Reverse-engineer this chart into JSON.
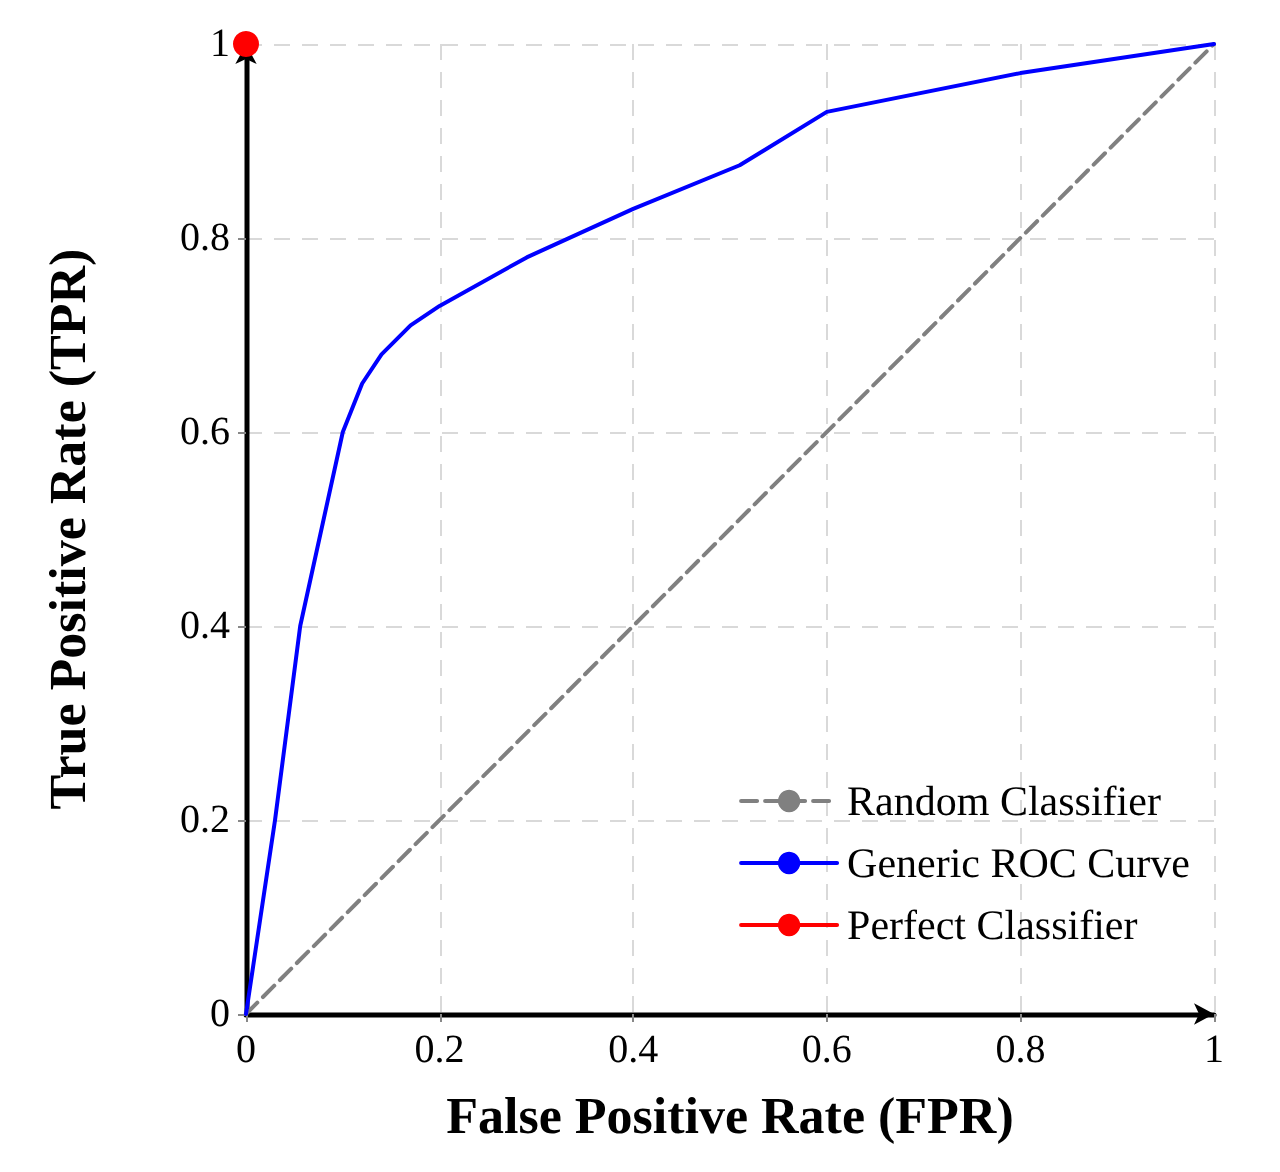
{
  "chart_data": {
    "type": "line",
    "xlabel": "False Positive Rate (FPR)",
    "ylabel": "True Positive Rate (TPR)",
    "xlim": [
      0,
      1
    ],
    "ylim": [
      0,
      1
    ],
    "xticks": [
      0,
      0.2,
      0.4,
      0.6,
      0.8,
      1
    ],
    "yticks": [
      0,
      0.2,
      0.4,
      0.6,
      0.8,
      1
    ],
    "grid": true,
    "legend": "bottom right",
    "marker": "none",
    "series": [
      {
        "name": "Random Classifier",
        "color": "#808080",
        "line_style": "dashed",
        "x": [
          0,
          1
        ],
        "values": [
          0,
          1
        ]
      },
      {
        "name": "Generic ROC Curve",
        "color": "#0000ff",
        "line_style": "solid",
        "x": [
          0,
          0.03,
          0.056,
          0.1,
          0.12,
          0.14,
          0.17,
          0.2,
          0.29,
          0.4,
          0.51,
          0.6,
          0.8,
          1
        ],
        "values": [
          0,
          0.2,
          0.4,
          0.6,
          0.65,
          0.68,
          0.71,
          0.73,
          0.78,
          0.83,
          0.875,
          0.93,
          0.97,
          1
        ]
      },
      {
        "name": "Perfect Classifier",
        "color": "#ff0000",
        "marker": "circle",
        "x": [
          0
        ],
        "values": [
          1
        ]
      }
    ]
  }
}
